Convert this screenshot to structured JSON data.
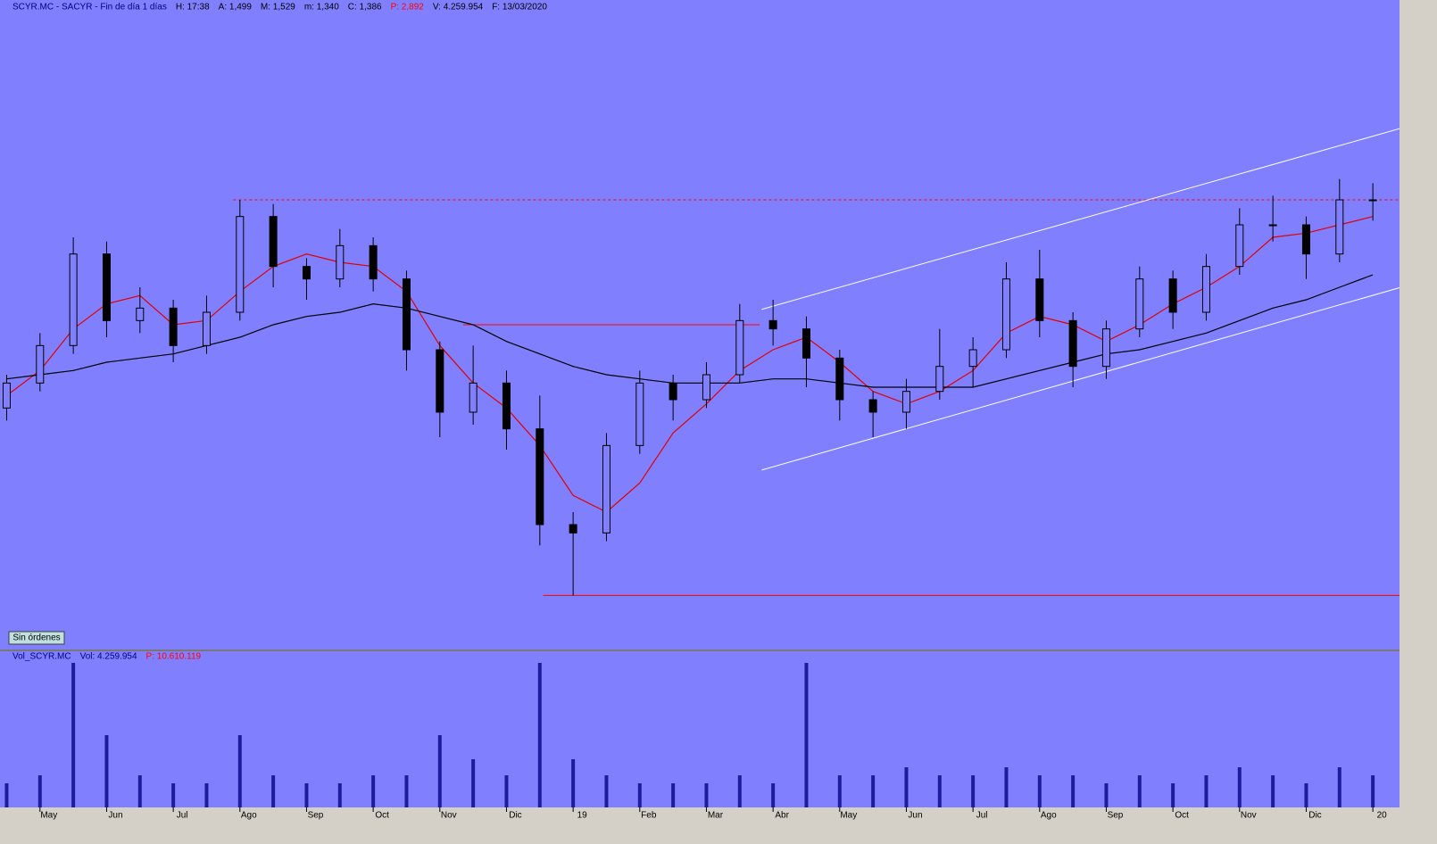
{
  "header": {
    "symbol": "SCYR.MC - SACYR - Fin de día 1 días",
    "fields": [
      {
        "text": "H: 17:38",
        "color": "#000000"
      },
      {
        "text": "A: 1,499",
        "color": "#000000"
      },
      {
        "text": "M: 1,529",
        "color": "#000000"
      },
      {
        "text": "m: 1,340",
        "color": "#000000"
      },
      {
        "text": "C: 1,386",
        "color": "#000000"
      },
      {
        "text": "P: 2,892",
        "color": "#ff0000"
      },
      {
        "text": "V: 4.259.954",
        "color": "#000000"
      },
      {
        "text": "F: 13/03/2020",
        "color": "#000000"
      }
    ]
  },
  "button": "Sin órdenes",
  "volume_header": {
    "symbol": "Vol_SCYR.MC",
    "fields": [
      {
        "text": "Vol: 4.259.954",
        "color": "#000080"
      },
      {
        "text": "P: 10.610.119",
        "color": "#ff0000"
      }
    ]
  },
  "chart_data": [
    {
      "type": "candlestick",
      "xlim": [
        -0.6,
        20.4
      ],
      "ylim": [
        1.47,
        3.03
      ],
      "x": [
        -0.5,
        0,
        0.5,
        1,
        1.5,
        2,
        2.5,
        3,
        3.5,
        4,
        4.5,
        5,
        5.5,
        6,
        6.5,
        7,
        7.5,
        8,
        8.5,
        9,
        9.5,
        10,
        10.5,
        11,
        11.5,
        12,
        12.5,
        13,
        13.5,
        14,
        14.5,
        15,
        15.5,
        16,
        16.5,
        17,
        17.5,
        18,
        18.5,
        19,
        19.5,
        20
      ],
      "ohlc": [
        [
          2.05,
          2.13,
          2.02,
          2.11
        ],
        [
          2.11,
          2.23,
          2.09,
          2.2
        ],
        [
          2.2,
          2.46,
          2.18,
          2.42
        ],
        [
          2.42,
          2.45,
          2.22,
          2.26
        ],
        [
          2.26,
          2.34,
          2.23,
          2.29
        ],
        [
          2.29,
          2.31,
          2.16,
          2.2
        ],
        [
          2.2,
          2.32,
          2.18,
          2.28
        ],
        [
          2.28,
          2.55,
          2.26,
          2.51
        ],
        [
          2.51,
          2.54,
          2.34,
          2.39
        ],
        [
          2.39,
          2.41,
          2.31,
          2.36
        ],
        [
          2.36,
          2.48,
          2.34,
          2.44
        ],
        [
          2.44,
          2.46,
          2.33,
          2.36
        ],
        [
          2.36,
          2.38,
          2.14,
          2.19
        ],
        [
          2.19,
          2.21,
          1.98,
          2.04
        ],
        [
          2.04,
          2.2,
          2.01,
          2.11
        ],
        [
          2.11,
          2.14,
          1.95,
          2.0
        ],
        [
          2.0,
          2.08,
          1.72,
          1.77
        ],
        [
          1.77,
          1.8,
          1.6,
          1.75
        ],
        [
          1.75,
          1.99,
          1.73,
          1.96
        ],
        [
          1.96,
          2.14,
          1.94,
          2.11
        ],
        [
          2.11,
          2.13,
          2.02,
          2.07
        ],
        [
          2.07,
          2.16,
          2.05,
          2.13
        ],
        [
          2.13,
          2.3,
          2.11,
          2.26
        ],
        [
          2.26,
          2.31,
          2.2,
          2.24
        ],
        [
          2.24,
          2.27,
          2.1,
          2.17
        ],
        [
          2.17,
          2.19,
          2.02,
          2.07
        ],
        [
          2.07,
          2.09,
          1.98,
          2.04
        ],
        [
          2.04,
          2.12,
          2.0,
          2.09
        ],
        [
          2.09,
          2.24,
          2.07,
          2.15
        ],
        [
          2.15,
          2.22,
          2.1,
          2.19
        ],
        [
          2.19,
          2.4,
          2.17,
          2.36
        ],
        [
          2.36,
          2.43,
          2.22,
          2.26
        ],
        [
          2.26,
          2.28,
          2.1,
          2.15
        ],
        [
          2.15,
          2.26,
          2.12,
          2.24
        ],
        [
          2.24,
          2.39,
          2.22,
          2.36
        ],
        [
          2.36,
          2.38,
          2.24,
          2.28
        ],
        [
          2.28,
          2.42,
          2.26,
          2.39
        ],
        [
          2.39,
          2.53,
          2.37,
          2.49
        ],
        [
          2.49,
          2.56,
          2.45,
          2.49
        ],
        [
          2.49,
          2.51,
          2.36,
          2.42
        ],
        [
          2.42,
          2.6,
          2.4,
          2.55
        ],
        [
          2.55,
          2.59,
          2.5,
          2.55
        ]
      ],
      "moving_averages": [
        {
          "color": "#e00000",
          "values": [
            2.08,
            2.14,
            2.24,
            2.3,
            2.32,
            2.25,
            2.26,
            2.33,
            2.39,
            2.42,
            2.4,
            2.39,
            2.33,
            2.2,
            2.11,
            2.05,
            1.96,
            1.84,
            1.8,
            1.87,
            1.99,
            2.06,
            2.14,
            2.19,
            2.22,
            2.16,
            2.09,
            2.06,
            2.09,
            2.14,
            2.23,
            2.27,
            2.25,
            2.21,
            2.25,
            2.3,
            2.34,
            2.39,
            2.46,
            2.47,
            2.49,
            2.51
          ]
        },
        {
          "color": "#000000",
          "values": [
            2.12,
            2.13,
            2.14,
            2.16,
            2.17,
            2.18,
            2.2,
            2.22,
            2.25,
            2.27,
            2.28,
            2.3,
            2.29,
            2.27,
            2.25,
            2.21,
            2.18,
            2.15,
            2.13,
            2.12,
            2.11,
            2.11,
            2.11,
            2.12,
            2.12,
            2.11,
            2.1,
            2.1,
            2.1,
            2.1,
            2.12,
            2.14,
            2.16,
            2.18,
            2.19,
            2.21,
            2.23,
            2.26,
            2.29,
            2.31,
            2.34,
            2.37
          ]
        }
      ],
      "lines": [
        {
          "color": "#ff0000",
          "dashed": true,
          "x": [
            2.9,
            20.4
          ],
          "y": [
            2.55,
            2.55
          ]
        },
        {
          "color": "#ff0000",
          "dashed": false,
          "x": [
            6.35,
            10.8
          ],
          "y": [
            2.25,
            2.25
          ]
        },
        {
          "color": "#ff0000",
          "dashed": false,
          "x": [
            7.55,
            20.4
          ],
          "y": [
            1.6,
            1.6
          ]
        },
        {
          "color": "#ffffff",
          "dashed": false,
          "x": [
            10.83,
            20.4
          ],
          "y": [
            2.287,
            2.721
          ]
        },
        {
          "color": "#ffffff",
          "dashed": false,
          "x": [
            10.83,
            20.4
          ],
          "y": [
            1.901,
            2.339
          ]
        }
      ]
    },
    {
      "type": "bar",
      "xlim": [
        -0.6,
        20.4
      ],
      "ylim": [
        0,
        18
      ],
      "color": "#1c1c9c",
      "x": [
        -0.5,
        0,
        0.5,
        1,
        1.5,
        2,
        2.5,
        3,
        3.5,
        4,
        4.5,
        5,
        5.5,
        6,
        6.5,
        7,
        7.5,
        8,
        8.5,
        9,
        9.5,
        10,
        10.5,
        11,
        11.5,
        12,
        12.5,
        13,
        13.5,
        14,
        14.5,
        15,
        15.5,
        16,
        16.5,
        17,
        17.5,
        18,
        18.5,
        19,
        19.5,
        20
      ],
      "values": [
        3,
        4,
        18,
        9,
        4,
        3,
        3,
        9,
        4,
        3,
        3,
        4,
        4,
        9,
        6,
        4,
        18,
        6,
        4,
        3,
        3,
        3,
        4,
        3,
        18,
        4,
        4,
        5,
        4,
        4,
        5,
        4,
        4,
        3,
        4,
        3,
        4,
        5,
        4,
        3,
        5,
        4
      ],
      "xticks": [
        {
          "value": 0,
          "label": "May"
        },
        {
          "value": 1,
          "label": "Jun"
        },
        {
          "value": 2,
          "label": "Jul"
        },
        {
          "value": 3,
          "label": "Ago"
        },
        {
          "value": 4,
          "label": "Sep"
        },
        {
          "value": 5,
          "label": "Oct"
        },
        {
          "value": 6,
          "label": "Nov"
        },
        {
          "value": 7,
          "label": "Dic"
        },
        {
          "value": 8,
          "label": "19"
        },
        {
          "value": 9,
          "label": "Feb"
        },
        {
          "value": 10,
          "label": "Mar"
        },
        {
          "value": 11,
          "label": "Abr"
        },
        {
          "value": 12,
          "label": "May"
        },
        {
          "value": 13,
          "label": "Jun"
        },
        {
          "value": 14,
          "label": "Jul"
        },
        {
          "value": 15,
          "label": "Ago"
        },
        {
          "value": 16,
          "label": "Sep"
        },
        {
          "value": 17,
          "label": "Oct"
        },
        {
          "value": 18,
          "label": "Nov"
        },
        {
          "value": 19,
          "label": "Dic"
        },
        {
          "value": 20,
          "label": "20"
        }
      ]
    }
  ]
}
